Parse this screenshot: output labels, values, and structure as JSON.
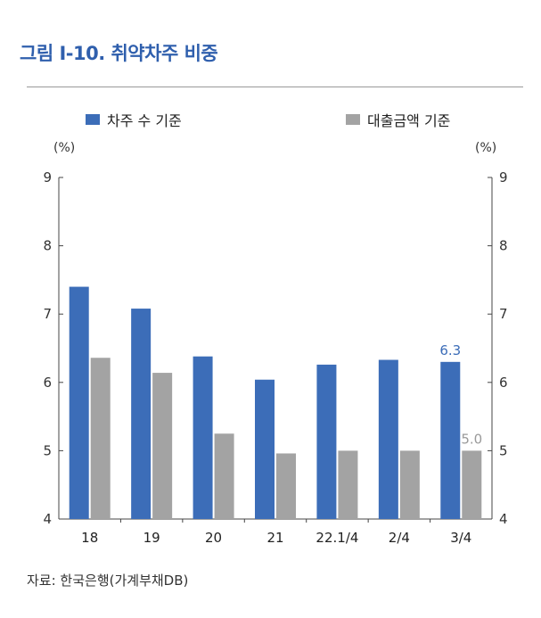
{
  "header": {
    "title": "그림 Ⅰ-10. 취약차주 비중"
  },
  "legend": {
    "items": [
      {
        "label": "차주 수 기준",
        "color": "#3c6db8"
      },
      {
        "label": "대출금액 기준",
        "color": "#a3a3a3"
      }
    ]
  },
  "axis": {
    "left_unit": "(%)",
    "right_unit": "(%)"
  },
  "source": "자료: 한국은행(가계부채DB)",
  "chart_data": {
    "type": "bar",
    "title": "그림 Ⅰ-10. 취약차주 비중",
    "categories": [
      "18",
      "19",
      "20",
      "21",
      "22.1/4",
      "2/4",
      "3/4"
    ],
    "series": [
      {
        "name": "차주 수 기준",
        "color": "#3c6db8",
        "values": [
          7.4,
          7.08,
          6.38,
          6.04,
          6.26,
          6.33,
          6.3
        ]
      },
      {
        "name": "대출금액 기준",
        "color": "#a3a3a3",
        "values": [
          6.36,
          6.14,
          5.25,
          4.96,
          5.0,
          5.0,
          5.0
        ]
      }
    ],
    "data_labels": [
      {
        "series": 0,
        "index": 6,
        "text": "6.3",
        "color": "#3c6db8"
      },
      {
        "series": 1,
        "index": 6,
        "text": "5.0",
        "color": "#9a9a9a"
      }
    ],
    "ylim": [
      4,
      9
    ],
    "yticks": [
      4,
      5,
      6,
      7,
      8,
      9
    ],
    "y_unit": "(%)",
    "dual_y_axis": true,
    "legend_position": "top",
    "grid": false
  }
}
